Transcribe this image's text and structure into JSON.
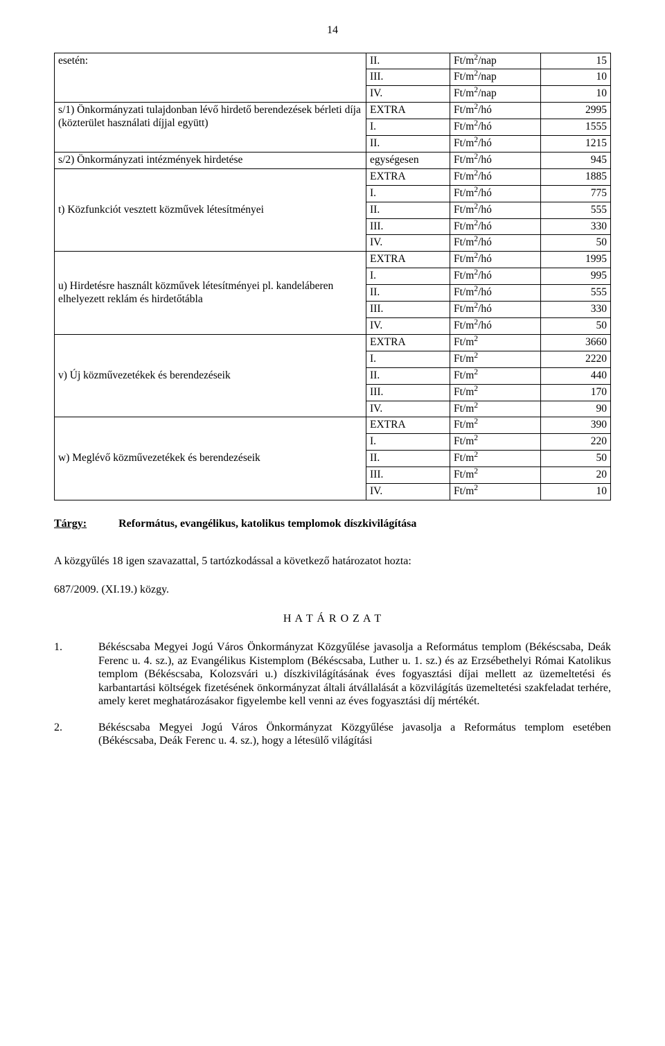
{
  "page_number": "14",
  "table": {
    "blocks": [
      {
        "label": "esetén:",
        "rows": [
          {
            "cat": "II.",
            "unit": "Ft/m²/nap",
            "val": "15"
          },
          {
            "cat": "III.",
            "unit": "Ft/m²/nap",
            "val": "10"
          },
          {
            "cat": "IV.",
            "unit": "Ft/m²/nap",
            "val": "10"
          }
        ]
      },
      {
        "label": "s/1) Önkormányzati tulajdonban lévő hirdető berendezések bérleti díja (közterület használati díjjal együtt)",
        "rows": [
          {
            "cat": "EXTRA",
            "unit": "Ft/m²/hó",
            "val": "2995"
          },
          {
            "cat": "I.",
            "unit": "Ft/m²/hó",
            "val": "1555"
          },
          {
            "cat": "II.",
            "unit": "Ft/m²/hó",
            "val": "1215"
          }
        ]
      },
      {
        "label": "s/2) Önkormányzati intézmények hirdetése",
        "rows": [
          {
            "cat": "egységesen",
            "unit": "Ft/m²/hó",
            "val": "945"
          }
        ]
      },
      {
        "label": "t) Közfunkciót vesztett közművek létesítményei",
        "label_align": "middle",
        "rows": [
          {
            "cat": "EXTRA",
            "unit": "Ft/m²/hó",
            "val": "1885"
          },
          {
            "cat": "I.",
            "unit": "Ft/m²/hó",
            "val": "775"
          },
          {
            "cat": "II.",
            "unit": "Ft/m²/hó",
            "val": "555"
          },
          {
            "cat": "III.",
            "unit": "Ft/m²/hó",
            "val": "330"
          },
          {
            "cat": "IV.",
            "unit": "Ft/m²/hó",
            "val": "50"
          }
        ]
      },
      {
        "label": "u) Hirdetésre használt közművek létesítményei pl. kandeláberen elhelyezett reklám és hirdetőtábla",
        "label_align": "middle",
        "rows": [
          {
            "cat": "EXTRA",
            "unit": "Ft/m²/hó",
            "val": "1995"
          },
          {
            "cat": "I.",
            "unit": "Ft/m²/hó",
            "val": "995"
          },
          {
            "cat": "II.",
            "unit": "Ft/m²/hó",
            "val": "555"
          },
          {
            "cat": "III.",
            "unit": "Ft/m²/hó",
            "val": "330"
          },
          {
            "cat": "IV.",
            "unit": "Ft/m²/hó",
            "val": "50"
          }
        ]
      },
      {
        "label": "v) Új közművezetékek és berendezéseik",
        "label_align": "middle",
        "rows": [
          {
            "cat": "EXTRA",
            "unit": "Ft/m²",
            "val": "3660"
          },
          {
            "cat": "I.",
            "unit": "Ft/m²",
            "val": "2220"
          },
          {
            "cat": "II.",
            "unit": "Ft/m²",
            "val": "440"
          },
          {
            "cat": "III.",
            "unit": "Ft/m²",
            "val": "170"
          },
          {
            "cat": "IV.",
            "unit": "Ft/m²",
            "val": "90"
          }
        ]
      },
      {
        "label": "w) Meglévő közművezetékek és berendezéseik",
        "label_align": "middle",
        "rows": [
          {
            "cat": "EXTRA",
            "unit": "Ft/m²",
            "val": "390"
          },
          {
            "cat": "I.",
            "unit": "Ft/m²",
            "val": "220"
          },
          {
            "cat": "II.",
            "unit": "Ft/m²",
            "val": "50"
          },
          {
            "cat": "III.",
            "unit": "Ft/m²",
            "val": "20"
          },
          {
            "cat": "IV.",
            "unit": "Ft/m²",
            "val": "10"
          }
        ]
      }
    ]
  },
  "targy": {
    "label": "Tárgy:",
    "text": "Református, evangélikus, katolikus templomok díszkivilágítása"
  },
  "para1": "A közgyűlés 18 igen szavazattal, 5 tartózkodással a következő határozatot hozta:",
  "ref": "687/2009. (XI.19.) közgy.",
  "hatarozat": "H A T Á R O Z A T",
  "items": [
    {
      "ix": "1.",
      "tx": "Békéscsaba Megyei Jogú Város Önkormányzat Közgyűlése javasolja a Református templom (Békéscsaba, Deák Ferenc u. 4. sz.), az Evangélikus Kistemplom (Békéscsaba, Luther u. 1. sz.) és az Erzsébethelyi Római Katolikus templom (Békéscsaba, Kolozsvári u.) díszkivilágításának éves fogyasztási díjai mellett az üzemeltetési és karbantartási költségek fizetésének önkormányzat általi átvállalását a közvilágítás üzemeltetési szakfeladat terhére, amely keret meghatározásakor figyelembe kell venni az éves fogyasztási díj mértékét."
    },
    {
      "ix": "2.",
      "tx": "Békéscsaba Megyei Jogú Város Önkormányzat Közgyűlése javasolja a Református templom esetében (Békéscsaba, Deák Ferenc u. 4. sz.), hogy a létesülő világítási"
    }
  ]
}
